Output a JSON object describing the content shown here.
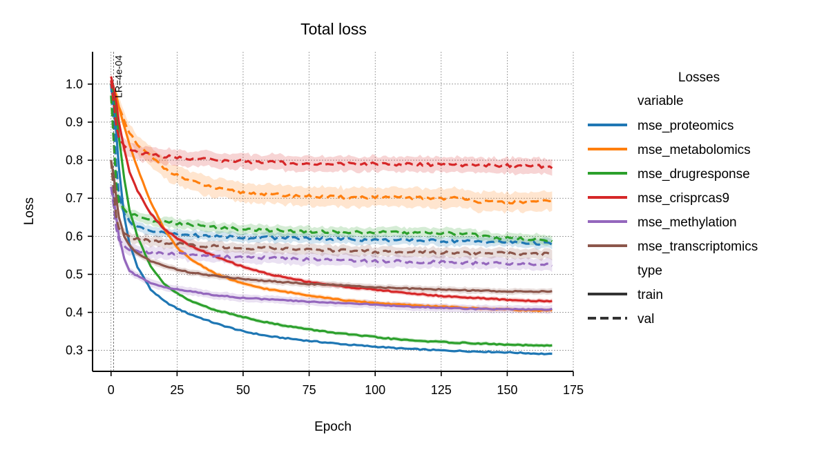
{
  "chart_data": {
    "type": "line",
    "title": "Total loss",
    "xlabel": "Epoch",
    "ylabel": "Loss",
    "xlim": [
      -7,
      175
    ],
    "ylim": [
      0.245,
      1.085
    ],
    "xticks": [
      0,
      25,
      50,
      75,
      100,
      125,
      150,
      175
    ],
    "yticks": [
      0.3,
      0.4,
      0.5,
      0.6,
      0.7,
      0.8,
      0.9,
      1.0
    ],
    "grid": true,
    "legend": {
      "title": "Losses",
      "placement": "right",
      "hue_title": "variable",
      "style_title": "type",
      "style_entries": [
        {
          "name": "train",
          "dash": "solid"
        },
        {
          "name": "val",
          "dash": "dashed"
        }
      ]
    },
    "annotation": {
      "text": "LR=4e-04",
      "x": 1
    },
    "variables": [
      {
        "name": "mse_proteomics",
        "color": "#1f77b4",
        "series": [
          {
            "type": "train",
            "x": [
              0,
              1,
              2,
              3,
              5,
              7,
              10,
              15,
              20,
              25,
              30,
              40,
              50,
              60,
              75,
              90,
              100,
              110,
              125,
              140,
              150,
              160,
              167
            ],
            "y": [
              1.0,
              0.95,
              0.87,
              0.78,
              0.65,
              0.58,
              0.52,
              0.46,
              0.43,
              0.41,
              0.395,
              0.37,
              0.35,
              0.337,
              0.325,
              0.315,
              0.31,
              0.305,
              0.3,
              0.297,
              0.295,
              0.292,
              0.29
            ],
            "band": 0.003
          },
          {
            "type": "val",
            "x": [
              0,
              1,
              2,
              3,
              5,
              7,
              10,
              15,
              20,
              30,
              40,
              50,
              75,
              100,
              125,
              150,
              167
            ],
            "y": [
              1.0,
              0.9,
              0.78,
              0.71,
              0.66,
              0.64,
              0.625,
              0.615,
              0.608,
              0.603,
              0.6,
              0.597,
              0.595,
              0.59,
              0.588,
              0.585,
              0.58
            ],
            "band": 0.012
          }
        ]
      },
      {
        "name": "mse_metabolomics",
        "color": "#ff7f0e",
        "series": [
          {
            "type": "train",
            "x": [
              0,
              1,
              2,
              3,
              5,
              7,
              10,
              15,
              20,
              25,
              30,
              40,
              50,
              60,
              75,
              90,
              100,
              110,
              125,
              140,
              150,
              160,
              167
            ],
            "y": [
              1.0,
              0.99,
              0.97,
              0.94,
              0.89,
              0.84,
              0.78,
              0.69,
              0.62,
              0.57,
              0.54,
              0.5,
              0.475,
              0.46,
              0.445,
              0.43,
              0.425,
              0.42,
              0.415,
              0.41,
              0.408,
              0.405,
              0.405
            ],
            "band": 0.006
          },
          {
            "type": "val",
            "x": [
              0,
              1,
              2,
              3,
              5,
              7,
              10,
              15,
              20,
              25,
              30,
              40,
              50,
              60,
              75,
              90,
              100,
              110,
              125,
              135,
              140,
              150,
              160,
              167
            ],
            "y": [
              1.0,
              0.98,
              0.96,
              0.94,
              0.9,
              0.87,
              0.84,
              0.81,
              0.78,
              0.76,
              0.745,
              0.725,
              0.715,
              0.71,
              0.705,
              0.702,
              0.703,
              0.702,
              0.7,
              0.7,
              0.69,
              0.69,
              0.69,
              0.692
            ],
            "band": 0.025
          }
        ]
      },
      {
        "name": "mse_drugresponse",
        "color": "#2ca02c",
        "series": [
          {
            "type": "train",
            "x": [
              0,
              1,
              2,
              3,
              5,
              7,
              10,
              15,
              20,
              25,
              30,
              40,
              50,
              60,
              75,
              90,
              100,
              110,
              125,
              140,
              150,
              160,
              167
            ],
            "y": [
              1.0,
              0.98,
              0.93,
              0.86,
              0.75,
              0.67,
              0.6,
              0.52,
              0.475,
              0.45,
              0.43,
              0.405,
              0.388,
              0.372,
              0.355,
              0.342,
              0.335,
              0.328,
              0.322,
              0.318,
              0.315,
              0.313,
              0.312
            ],
            "band": 0.005
          },
          {
            "type": "val",
            "x": [
              0,
              1,
              2,
              3,
              5,
              7,
              10,
              15,
              20,
              30,
              40,
              50,
              75,
              100,
              125,
              135,
              140,
              150,
              167
            ],
            "y": [
              0.97,
              0.85,
              0.73,
              0.69,
              0.67,
              0.66,
              0.652,
              0.643,
              0.637,
              0.63,
              0.623,
              0.618,
              0.613,
              0.61,
              0.608,
              0.607,
              0.6,
              0.595,
              0.59
            ],
            "band": 0.013
          }
        ]
      },
      {
        "name": "mse_crisprcas9",
        "color": "#d62728",
        "series": [
          {
            "type": "train",
            "x": [
              0,
              1,
              2,
              3,
              5,
              7,
              10,
              15,
              20,
              25,
              30,
              40,
              50,
              60,
              75,
              90,
              100,
              110,
              125,
              140,
              150,
              160,
              167
            ],
            "y": [
              1.02,
              0.99,
              0.95,
              0.9,
              0.83,
              0.77,
              0.72,
              0.66,
              0.62,
              0.595,
              0.575,
              0.545,
              0.52,
              0.5,
              0.48,
              0.466,
              0.46,
              0.452,
              0.443,
              0.437,
              0.433,
              0.43,
              0.43
            ],
            "band": 0.006
          },
          {
            "type": "val",
            "x": [
              0,
              1,
              2,
              3,
              5,
              7,
              10,
              15,
              20,
              30,
              40,
              50,
              75,
              100,
              125,
              150,
              167
            ],
            "y": [
              1.01,
              0.95,
              0.89,
              0.86,
              0.84,
              0.83,
              0.82,
              0.815,
              0.81,
              0.805,
              0.8,
              0.797,
              0.79,
              0.79,
              0.788,
              0.786,
              0.783
            ],
            "band": 0.02
          }
        ]
      },
      {
        "name": "mse_methylation",
        "color": "#9467bd",
        "series": [
          {
            "type": "train",
            "x": [
              0,
              1,
              2,
              3,
              5,
              7,
              10,
              15,
              20,
              25,
              30,
              40,
              50,
              60,
              75,
              90,
              100,
              110,
              125,
              140,
              150,
              160,
              167
            ],
            "y": [
              0.73,
              0.7,
              0.65,
              0.6,
              0.54,
              0.51,
              0.495,
              0.478,
              0.467,
              0.46,
              0.455,
              0.445,
              0.438,
              0.434,
              0.428,
              0.424,
              0.42,
              0.416,
              0.412,
              0.409,
              0.408,
              0.407,
              0.408
            ],
            "band": 0.01
          },
          {
            "type": "val",
            "x": [
              0,
              1,
              2,
              3,
              5,
              7,
              10,
              15,
              20,
              30,
              40,
              50,
              75,
              100,
              125,
              150,
              167
            ],
            "y": [
              0.73,
              0.68,
              0.62,
              0.59,
              0.573,
              0.566,
              0.562,
              0.558,
              0.555,
              0.551,
              0.548,
              0.545,
              0.54,
              0.535,
              0.532,
              0.528,
              0.525
            ],
            "band": 0.015
          }
        ]
      },
      {
        "name": "mse_transcriptomics",
        "color": "#8c564b",
        "series": [
          {
            "type": "train",
            "x": [
              0,
              1,
              2,
              3,
              5,
              7,
              10,
              15,
              20,
              25,
              30,
              40,
              50,
              60,
              75,
              90,
              100,
              110,
              125,
              140,
              150,
              160,
              167
            ],
            "y": [
              0.8,
              0.76,
              0.7,
              0.65,
              0.6,
              0.575,
              0.555,
              0.535,
              0.522,
              0.513,
              0.505,
              0.495,
              0.488,
              0.482,
              0.475,
              0.47,
              0.466,
              0.463,
              0.46,
              0.457,
              0.455,
              0.455,
              0.455
            ],
            "band": 0.008
          },
          {
            "type": "val",
            "x": [
              0,
              1,
              2,
              3,
              5,
              7,
              10,
              15,
              20,
              30,
              40,
              50,
              75,
              100,
              125,
              150,
              167
            ],
            "y": [
              0.8,
              0.72,
              0.65,
              0.62,
              0.605,
              0.598,
              0.592,
              0.587,
              0.583,
              0.577,
              0.573,
              0.57,
              0.565,
              0.56,
              0.558,
              0.555,
              0.553
            ],
            "band": 0.013
          }
        ]
      }
    ]
  }
}
